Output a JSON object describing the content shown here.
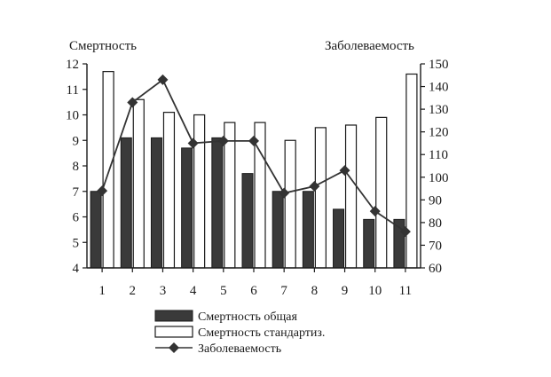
{
  "chart_data": {
    "type": "bar",
    "y_left_label": "Смертность",
    "y_right_label": "Заболеваемость",
    "categories": [
      "1",
      "2",
      "3",
      "4",
      "5",
      "6",
      "7",
      "8",
      "9",
      "10",
      "11"
    ],
    "ylim_left": [
      4,
      12
    ],
    "yticks_left": [
      "4",
      "5",
      "6",
      "7",
      "8",
      "9",
      "10",
      "11",
      "12"
    ],
    "ylim_right": [
      60,
      150
    ],
    "yticks_right": [
      "60",
      "70",
      "80",
      "90",
      "100",
      "110",
      "120",
      "130",
      "140",
      "150"
    ],
    "series": [
      {
        "name": "Смертность общая",
        "kind": "bar",
        "axis": "left",
        "fill": "#3a3a3a",
        "values": [
          7.0,
          9.1,
          9.1,
          8.7,
          9.1,
          7.7,
          7.0,
          7.0,
          6.3,
          5.9,
          5.9
        ]
      },
      {
        "name": "Смертность стандартиз.",
        "kind": "bar",
        "axis": "left",
        "fill": "#ffffff",
        "values": [
          11.7,
          10.6,
          10.1,
          10.0,
          9.7,
          9.7,
          9.0,
          9.5,
          9.6,
          9.9,
          11.6
        ]
      },
      {
        "name": "Заболеваемость",
        "kind": "line",
        "marker": "diamond",
        "axis": "right",
        "color": "#333333",
        "values": [
          94,
          133,
          143,
          115,
          116,
          116,
          93,
          96,
          103,
          85,
          76
        ]
      }
    ],
    "legend_position": "bottom",
    "grid": false
  }
}
